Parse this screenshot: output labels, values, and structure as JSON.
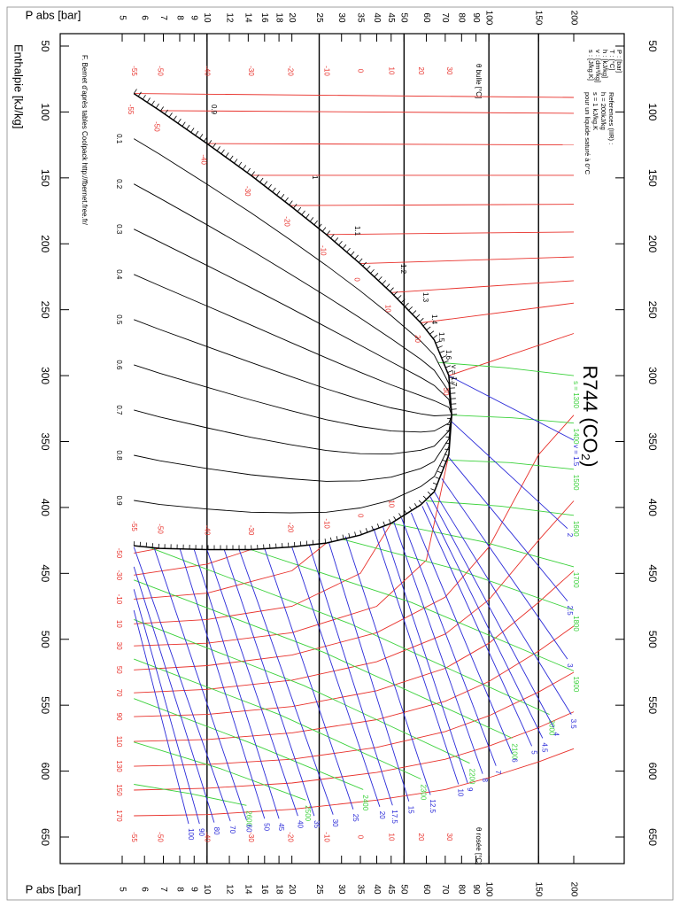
{
  "chart_data": {
    "type": "line",
    "title": "R744 (CO₂)",
    "x_label": "P abs [bar]",
    "y_label": "Enthalpie [kJ/kg]",
    "x_log": true,
    "xlim": [
      5,
      200
    ],
    "xticks": [
      5,
      6,
      7,
      8,
      9,
      10,
      12,
      14,
      16,
      18,
      20,
      25,
      30,
      35,
      40,
      45,
      50,
      60,
      70,
      80,
      90,
      100,
      150,
      200
    ],
    "ylim": [
      50,
      650
    ],
    "yticks": [
      50,
      100,
      150,
      200,
      250,
      300,
      350,
      400,
      450,
      500,
      550,
      600,
      650
    ],
    "major_lines": [
      10,
      25,
      50,
      100,
      150
    ],
    "units": [
      "P : [bar]",
      "T : [°C]",
      "h : [kJ/kg]",
      "v : [dm³/kg]",
      "s : [J/kg.K]"
    ],
    "reference": [
      "References (IIR) :",
      "h = 200kJ/kg",
      "s = 1 kJ/kg.K",
      "pour un liquide saturé à 0°C"
    ],
    "credit": "F. Bernet d'après tables Coolpack http://fbernet.free.fr/",
    "bubble_label": "θ bulle [°C]",
    "dew_label": "θ rosée [°C]",
    "saturation": {
      "color": "#000000",
      "x": [
        5.5,
        6.8,
        10.0,
        14.3,
        19.7,
        26.5,
        34.9,
        45.0,
        57.3,
        64.0,
        72.1,
        73.8
      ],
      "liquid": [
        86,
        99,
        124,
        148,
        171,
        193,
        215,
        237,
        260,
        273,
        300,
        330
      ],
      "vapor": [
        429,
        431,
        432,
        432,
        430,
        427,
        421,
        412,
        398,
        388,
        360,
        330
      ]
    },
    "sat_temperatures": {
      "values": [
        -55,
        -50,
        -40,
        -30,
        -20,
        -10,
        0,
        10,
        20,
        30
      ],
      "x": [
        5.5,
        6.8,
        10.0,
        14.3,
        19.7,
        26.5,
        34.9,
        45.0,
        57.3,
        72.1
      ]
    },
    "liquid_isotherms": {
      "color": "#e8312b",
      "lines": [
        {
          "x": [
            5.5,
            200
          ],
          "values": [
            86,
            89
          ]
        },
        {
          "x": [
            6.8,
            200
          ],
          "values": [
            99,
            101
          ]
        },
        {
          "x": [
            10.0,
            200
          ],
          "values": [
            124,
            125
          ]
        },
        {
          "x": [
            14.3,
            200
          ],
          "values": [
            148,
            148
          ]
        },
        {
          "x": [
            19.7,
            200
          ],
          "values": [
            171,
            170
          ]
        },
        {
          "x": [
            26.5,
            200
          ],
          "values": [
            193,
            191
          ]
        },
        {
          "x": [
            34.9,
            200
          ],
          "values": [
            215,
            210
          ]
        },
        {
          "x": [
            45.0,
            200
          ],
          "values": [
            237,
            228
          ]
        },
        {
          "x": [
            57.3,
            200
          ],
          "values": [
            260,
            245
          ]
        },
        {
          "x": [
            72.1,
            200
          ],
          "values": [
            300,
            268
          ]
        }
      ]
    },
    "liquid_volume_labels": [
      "0.9",
      "1",
      "1.1",
      "1.2",
      "1.3",
      "1.4",
      "1.5",
      "1.6",
      "v = 1.7"
    ],
    "quality": {
      "color": "#000000",
      "series": [
        {
          "name": "0.1",
          "values": [
            120.3,
            132.2,
            154.8,
            176.4,
            196.9,
            216.4,
            235.6,
            254.5,
            273.8,
            284.5,
            306,
            330
          ]
        },
        {
          "name": "0.2",
          "values": [
            154.6,
            165.4,
            185.6,
            204.8,
            222.8,
            239.8,
            256.2,
            272,
            287.6,
            296,
            312,
            330
          ]
        },
        {
          "name": "0.3",
          "values": [
            188.9,
            198.6,
            216.4,
            233.2,
            248.7,
            263.2,
            276.8,
            289.5,
            301.4,
            307.5,
            318,
            330
          ]
        },
        {
          "name": "0.4",
          "values": [
            223.2,
            231.8,
            247.2,
            261.6,
            274.6,
            286.6,
            297.4,
            307,
            315.2,
            319,
            324,
            330
          ]
        },
        {
          "name": "0.5",
          "values": [
            257.5,
            265,
            278,
            290,
            300.5,
            310,
            318,
            324.5,
            329,
            330.5,
            330,
            330
          ]
        },
        {
          "name": "0.6",
          "values": [
            291.8,
            298.2,
            308.8,
            318.4,
            326.4,
            333.4,
            338.6,
            342,
            342.8,
            342,
            336,
            330
          ]
        },
        {
          "name": "0.7",
          "values": [
            326.1,
            331.4,
            339.6,
            346.8,
            352.3,
            356.8,
            359.2,
            359.5,
            356.6,
            353.5,
            342,
            330
          ]
        },
        {
          "name": "0.8",
          "values": [
            360.4,
            364.6,
            370.4,
            375.2,
            378.2,
            380.2,
            379.8,
            377,
            370.4,
            365,
            348,
            330
          ]
        },
        {
          "name": "0.9",
          "values": [
            394.7,
            397.8,
            401.2,
            403.6,
            404.1,
            403.6,
            400.4,
            394.5,
            384.2,
            376.5,
            354,
            330
          ]
        }
      ]
    },
    "isotherms": {
      "color": "#e8312b",
      "series": [
        {
          "name": "-50",
          "x": [
            5.5,
            6.8
          ],
          "values": [
            434.6,
            431
          ]
        },
        {
          "name": "-30",
          "x": [
            5.5,
            10,
            14.3
          ],
          "values": [
            451.3,
            443,
            432
          ]
        },
        {
          "name": "-10",
          "x": [
            5.5,
            10,
            20,
            26.5
          ],
          "values": [
            469.5,
            465,
            448,
            427
          ]
        },
        {
          "name": "10",
          "x": [
            5.5,
            10,
            20,
            35,
            45
          ],
          "values": [
            488.3,
            485,
            475,
            450,
            412
          ]
        },
        {
          "name": "30",
          "x": [
            5.5,
            10,
            20,
            40,
            60,
            72.1
          ],
          "values": [
            505,
            503,
            495,
            475,
            440,
            360
          ]
        },
        {
          "name": "50",
          "x": [
            5.5,
            10,
            20,
            40,
            70,
            100,
            150,
            200
          ],
          "values": [
            523.2,
            520,
            512,
            495,
            468,
            430,
            360,
            330
          ]
        },
        {
          "name": "70",
          "x": [
            5.5,
            10,
            20,
            40,
            70,
            100,
            150,
            200
          ],
          "values": [
            540.6,
            538,
            531,
            517,
            496,
            470,
            425,
            395
          ]
        },
        {
          "name": "90",
          "x": [
            5.5,
            10,
            20,
            40,
            70,
            100,
            150,
            200
          ],
          "values": [
            558.7,
            557,
            551,
            539,
            522,
            503,
            472,
            448
          ]
        },
        {
          "name": "110",
          "x": [
            5.5,
            10,
            20,
            40,
            70,
            100,
            150,
            200
          ],
          "values": [
            577.5,
            576,
            571,
            561,
            547,
            532,
            509,
            490
          ]
        },
        {
          "name": "130",
          "x": [
            5.5,
            10,
            20,
            40,
            70,
            100,
            150,
            200
          ],
          "values": [
            596.3,
            595,
            591,
            582,
            570,
            558,
            540,
            525
          ]
        },
        {
          "name": "150",
          "x": [
            5.5,
            10,
            20,
            40,
            70,
            100,
            150,
            200
          ],
          "values": [
            614.4,
            613,
            609,
            601,
            591,
            581,
            567,
            555
          ]
        },
        {
          "name": "170",
          "x": [
            5.5,
            10,
            20,
            40,
            70,
            100,
            150,
            200
          ],
          "values": [
            633.9,
            633,
            629,
            622,
            614,
            605,
            593,
            583
          ]
        }
      ]
    },
    "isentropes": {
      "color": "#3ad13a",
      "series": [
        {
          "name": "s = 1300",
          "x": [
            66,
            115,
            200
          ],
          "values": [
            290,
            294,
            300
          ]
        },
        {
          "name": "1400",
          "x": [
            73.8,
            121,
            200
          ],
          "values": [
            330,
            332,
            336
          ]
        },
        {
          "name": "1500",
          "x": [
            71.3,
            119,
            200
          ],
          "values": [
            364,
            366,
            371
          ]
        },
        {
          "name": "1600",
          "x": [
            60,
            110,
            200
          ],
          "values": [
            395,
            399,
            406
          ]
        },
        {
          "name": "1700",
          "x": [
            45,
            95,
            200
          ],
          "values": [
            412,
            426,
            445
          ]
        },
        {
          "name": "1800",
          "x": [
            30,
            77,
            200
          ],
          "values": [
            424,
            447,
            478
          ]
        },
        {
          "name": "1900",
          "x": [
            14.3,
            53,
            200
          ],
          "values": [
            432,
            472,
            524
          ]
        },
        {
          "name": "2000",
          "x": [
            6.2,
            32,
            164
          ],
          "values": [
            430,
            488,
            557
          ]
        },
        {
          "name": "2100",
          "x": [
            5.5,
            26,
            121
          ],
          "values": [
            455,
            510,
            575
          ]
        },
        {
          "name": "2200",
          "x": [
            5.5,
            22,
            85.5
          ],
          "values": [
            485,
            535,
            594
          ]
        },
        {
          "name": "2300",
          "x": [
            5.5,
            18,
            57.4
          ],
          "values": [
            515,
            557,
            606
          ]
        },
        {
          "name": "2400",
          "x": [
            5.5,
            14,
            35.8
          ],
          "values": [
            545,
            578,
            614
          ]
        },
        {
          "name": "2500",
          "x": [
            5.5,
            11.1,
            22.4
          ],
          "values": [
            578,
            598,
            622
          ]
        },
        {
          "name": "2600",
          "x": [
            5.5,
            8.7,
            13.8
          ],
          "values": [
            610,
            617,
            626
          ]
        }
      ]
    },
    "isochores": {
      "color": "#2a2ad8",
      "series": [
        {
          "name": "v = 1.5",
          "x": [
            72,
            200
          ],
          "values": [
            300,
            349
          ]
        },
        {
          "name": "2",
          "x": [
            73.8,
            190
          ],
          "values": [
            335,
            416
          ]
        },
        {
          "name": "2.5",
          "x": [
            72.1,
            190
          ],
          "values": [
            362,
            471
          ]
        },
        {
          "name": "3",
          "x": [
            68,
            190
          ],
          "values": [
            378,
            515
          ]
        },
        {
          "name": "3.5",
          "x": [
            64,
            196
          ],
          "values": [
            388,
            557
          ]
        },
        {
          "name": "4",
          "x": [
            62,
            170
          ],
          "values": [
            392,
            567
          ]
        },
        {
          "name": "4.5",
          "x": [
            60,
            155
          ],
          "values": [
            396,
            575
          ]
        },
        {
          "name": "5",
          "x": [
            58,
            142
          ],
          "values": [
            399,
            581
          ]
        },
        {
          "name": "6",
          "x": [
            53,
            121
          ],
          "values": [
            404,
            587
          ]
        },
        {
          "name": "7",
          "x": [
            49,
            106
          ],
          "values": [
            408,
            596
          ]
        },
        {
          "name": "8",
          "x": [
            46,
            95
          ],
          "values": [
            411,
            602
          ]
        },
        {
          "name": "9",
          "x": [
            42,
            84
          ],
          "values": [
            414,
            609
          ]
        },
        {
          "name": "10",
          "x": [
            39,
            78
          ],
          "values": [
            416,
            610
          ]
        },
        {
          "name": "12.5",
          "x": [
            31,
            62
          ],
          "values": [
            422,
            618
          ]
        },
        {
          "name": "15",
          "x": [
            27,
            52
          ],
          "values": [
            426,
            623
          ]
        },
        {
          "name": "17.5",
          "x": [
            23,
            45.5
          ],
          "values": [
            428,
            626
          ]
        },
        {
          "name": "20",
          "x": [
            20,
            41
          ],
          "values": [
            430,
            627
          ]
        },
        {
          "name": "25",
          "x": [
            16,
            33
          ],
          "values": [
            431,
            629
          ]
        },
        {
          "name": "30",
          "x": [
            13,
            28
          ],
          "values": [
            432,
            633
          ]
        },
        {
          "name": "35",
          "x": [
            11.5,
            24
          ],
          "values": [
            432,
            634
          ]
        },
        {
          "name": "40",
          "x": [
            10,
            21
          ],
          "values": [
            432,
            634
          ]
        },
        {
          "name": "45",
          "x": [
            9,
            18
          ],
          "values": [
            432,
            636
          ]
        },
        {
          "name": "50",
          "x": [
            8,
            16
          ],
          "values": [
            431,
            636
          ]
        },
        {
          "name": "60",
          "x": [
            6.5,
            13.8
          ],
          "values": [
            431,
            637
          ]
        },
        {
          "name": "70",
          "x": [
            5.5,
            12.1
          ],
          "values": [
            430,
            638
          ]
        },
        {
          "name": "80",
          "x": [
            5.5,
            10.6
          ],
          "values": [
            445,
            639
          ]
        },
        {
          "name": "90",
          "x": [
            5.5,
            9.4
          ],
          "values": [
            462,
            640
          ]
        },
        {
          "name": "100",
          "x": [
            5.5,
            8.6
          ],
          "values": [
            478,
            640
          ]
        }
      ]
    }
  }
}
